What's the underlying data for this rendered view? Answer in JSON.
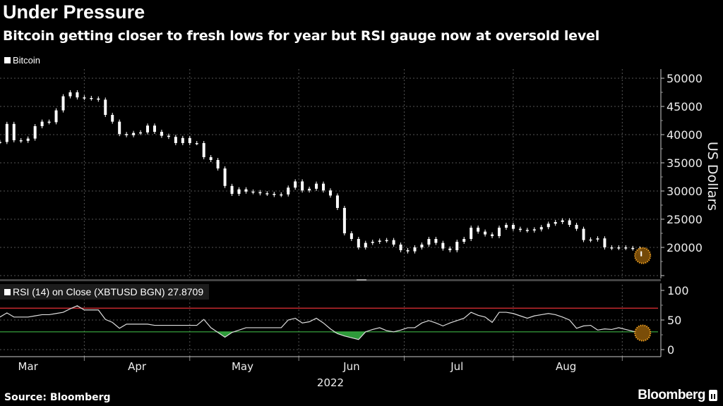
{
  "header": {
    "title": "Under Pressure",
    "subtitle": "Bitcoin getting closer to fresh lows for year but RSI gauge now at oversold level"
  },
  "footer": {
    "source": "Source: Bloomberg",
    "brand": "Bloomberg"
  },
  "colors": {
    "background": "#000000",
    "candles": "#ffffff",
    "rsi_line": "#dddddd",
    "overbought_line": "#c0282d",
    "oversold_line": "#3cb043",
    "oversold_fill": "#2e9a3a",
    "highlight": "#f0a020"
  },
  "chart_data": [
    {
      "type": "candlestick",
      "legend": "Bitcoin",
      "ylabel": "US Dollars",
      "ylim": [
        14500,
        51500
      ],
      "yticks": [
        20000,
        25000,
        30000,
        35000,
        40000,
        45000,
        50000
      ],
      "xticks": [
        "Mar",
        "Apr",
        "May",
        "Jun",
        "Jul",
        "Aug"
      ],
      "xlabel": "2022",
      "grid": true,
      "legend_position": "top-left",
      "highlight": "last point",
      "x": [
        "2022-03-08",
        "2022-03-10",
        "2022-03-12",
        "2022-03-14",
        "2022-03-16",
        "2022-03-18",
        "2022-03-20",
        "2022-03-22",
        "2022-03-24",
        "2022-03-26",
        "2022-03-28",
        "2022-03-30",
        "2022-04-01",
        "2022-04-03",
        "2022-04-05",
        "2022-04-07",
        "2022-04-09",
        "2022-04-11",
        "2022-04-13",
        "2022-04-15",
        "2022-04-17",
        "2022-04-19",
        "2022-04-21",
        "2022-04-23",
        "2022-04-25",
        "2022-04-27",
        "2022-04-29",
        "2022-05-01",
        "2022-05-03",
        "2022-05-05",
        "2022-05-07",
        "2022-05-09",
        "2022-05-11",
        "2022-05-13",
        "2022-05-15",
        "2022-05-17",
        "2022-05-19",
        "2022-05-21",
        "2022-05-23",
        "2022-05-25",
        "2022-05-27",
        "2022-05-29",
        "2022-05-31",
        "2022-06-02",
        "2022-06-04",
        "2022-06-06",
        "2022-06-08",
        "2022-06-10",
        "2022-06-12",
        "2022-06-14",
        "2022-06-16",
        "2022-06-18",
        "2022-06-20",
        "2022-06-22",
        "2022-06-24",
        "2022-06-26",
        "2022-06-28",
        "2022-06-30",
        "2022-07-02",
        "2022-07-04",
        "2022-07-06",
        "2022-07-08",
        "2022-07-10",
        "2022-07-12",
        "2022-07-14",
        "2022-07-16",
        "2022-07-18",
        "2022-07-20",
        "2022-07-22",
        "2022-07-24",
        "2022-07-26",
        "2022-07-28",
        "2022-07-30",
        "2022-08-01",
        "2022-08-03",
        "2022-08-05",
        "2022-08-07",
        "2022-08-09",
        "2022-08-11",
        "2022-08-13",
        "2022-08-15",
        "2022-08-17",
        "2022-08-19",
        "2022-08-21",
        "2022-08-23",
        "2022-08-25",
        "2022-08-27",
        "2022-08-29",
        "2022-08-31",
        "2022-09-02",
        "2022-09-04",
        "2022-09-06"
      ],
      "close": [
        38700,
        41900,
        39000,
        38900,
        39300,
        41500,
        42300,
        42200,
        44300,
        46800,
        47500,
        46600,
        46500,
        46400,
        46200,
        43500,
        42300,
        40100,
        39900,
        40300,
        40400,
        41600,
        40500,
        39800,
        39600,
        38500,
        39400,
        38500,
        38500,
        36000,
        35500,
        34000,
        30900,
        29500,
        30300,
        29900,
        29800,
        29600,
        29500,
        29300,
        29400,
        30600,
        31700,
        30100,
        30400,
        31300,
        30100,
        29200,
        27000,
        22500,
        21500,
        20000,
        20800,
        21000,
        21200,
        21300,
        20500,
        19500,
        19300,
        20000,
        20500,
        21500,
        20800,
        19800,
        19500,
        21000,
        21500,
        23500,
        22800,
        22300,
        22000,
        23500,
        24000,
        23300,
        23100,
        23000,
        23200,
        23600,
        24200,
        24500,
        24800,
        24000,
        23300,
        21300,
        21400,
        21600,
        20000,
        19900,
        20000,
        19900,
        19800,
        18800
      ]
    },
    {
      "type": "line",
      "legend": "RSI (14)  on Close (XBTUSD BGN)",
      "last_value": "27.8709",
      "ylim": [
        0,
        100
      ],
      "yticks": [
        0,
        50,
        100
      ],
      "overbought": 70,
      "oversold": 30,
      "values": [
        55,
        62,
        55,
        55,
        55,
        57,
        59,
        59,
        61,
        63,
        69,
        74,
        67,
        67,
        67,
        51,
        46,
        36,
        43,
        43,
        43,
        43,
        41,
        41,
        41,
        41,
        41,
        41,
        41,
        51,
        37,
        29,
        21,
        29,
        33,
        37,
        37,
        37,
        37,
        37,
        37,
        50,
        53,
        45,
        47,
        53,
        45,
        35,
        27,
        23,
        20,
        17,
        30,
        34,
        37,
        32,
        30,
        33,
        37,
        37,
        45,
        49,
        45,
        40,
        45,
        49,
        53,
        63,
        58,
        55,
        46,
        63,
        63,
        61,
        57,
        53,
        57,
        59,
        61,
        59,
        55,
        50,
        36,
        40,
        41,
        33,
        35,
        34,
        37,
        34,
        31,
        28
      ]
    }
  ]
}
